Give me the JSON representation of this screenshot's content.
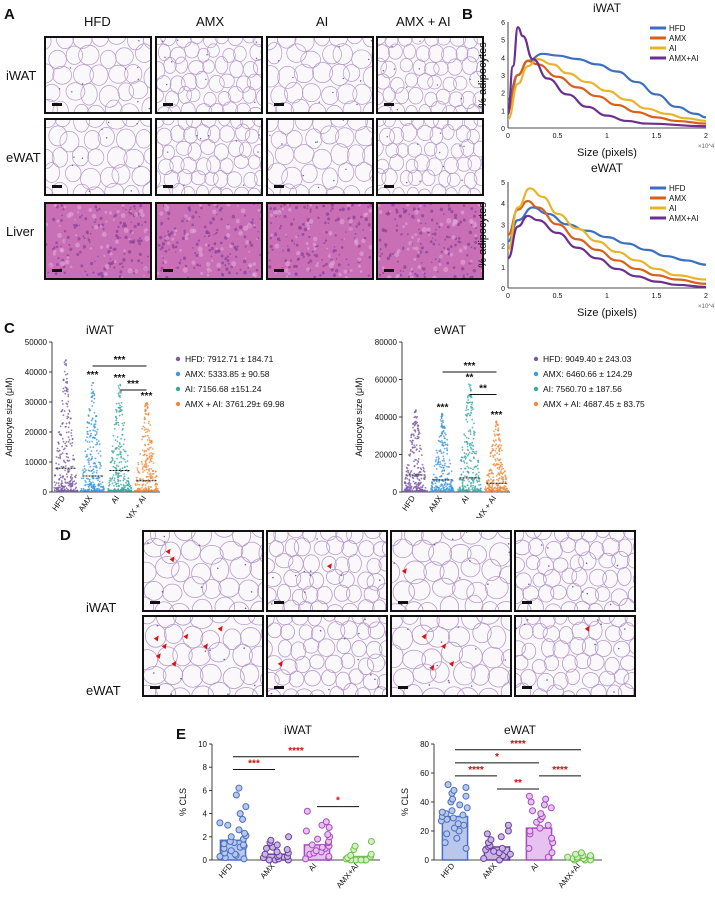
{
  "panels": {
    "a": "A",
    "b": "B",
    "c": "C",
    "d": "D",
    "e": "E"
  },
  "panel_a": {
    "columns": [
      "HFD",
      "AMX",
      "AI",
      "AMX + AI"
    ],
    "rows": [
      "iWAT",
      "eWAT",
      "Liver"
    ]
  },
  "panel_b": {
    "chart_data": [
      {
        "type": "line",
        "title": "iWAT",
        "xlabel": "Size (pixels)",
        "ylabel": "% adipocytes",
        "x_multiplier": "×10^4",
        "xlim": [
          0,
          2
        ],
        "ylim": [
          0,
          6
        ],
        "xticks": [
          "0",
          "0.5",
          "1",
          "1.5",
          "2"
        ],
        "yticks": [
          "0",
          "1",
          "2",
          "3",
          "4",
          "5",
          "6"
        ],
        "legend": "top-right",
        "series": [
          {
            "name": "HFD",
            "color": "#3b6fbf",
            "points": [
              [
                0,
                1.6
              ],
              [
                0.1,
                3.0
              ],
              [
                0.2,
                3.8
              ],
              [
                0.35,
                4.2
              ],
              [
                0.5,
                4.1
              ],
              [
                0.7,
                3.9
              ],
              [
                0.9,
                3.6
              ],
              [
                1.1,
                3.2
              ],
              [
                1.3,
                2.6
              ],
              [
                1.5,
                1.9
              ],
              [
                1.7,
                1.2
              ],
              [
                1.9,
                0.8
              ],
              [
                2,
                0.6
              ]
            ]
          },
          {
            "name": "AMX",
            "color": "#d95f1a",
            "points": [
              [
                0,
                1.0
              ],
              [
                0.1,
                3.0
              ],
              [
                0.2,
                3.8
              ],
              [
                0.3,
                3.6
              ],
              [
                0.5,
                2.9
              ],
              [
                0.7,
                2.3
              ],
              [
                0.9,
                1.8
              ],
              [
                1.1,
                1.3
              ],
              [
                1.3,
                0.9
              ],
              [
                1.5,
                0.6
              ],
              [
                1.7,
                0.4
              ],
              [
                2,
                0.25
              ]
            ]
          },
          {
            "name": "AI",
            "color": "#e8b52a",
            "points": [
              [
                0,
                0.5
              ],
              [
                0.1,
                2.5
              ],
              [
                0.2,
                3.5
              ],
              [
                0.3,
                3.9
              ],
              [
                0.45,
                3.6
              ],
              [
                0.6,
                3.1
              ],
              [
                0.8,
                2.6
              ],
              [
                1.0,
                2.1
              ],
              [
                1.2,
                1.6
              ],
              [
                1.4,
                1.1
              ],
              [
                1.6,
                0.8
              ],
              [
                1.8,
                0.55
              ],
              [
                2,
                0.4
              ]
            ]
          },
          {
            "name": "AMX+AI",
            "color": "#6b2f8f",
            "points": [
              [
                0,
                0.8
              ],
              [
                0.05,
                3.5
              ],
              [
                0.1,
                5.7
              ],
              [
                0.15,
                5.2
              ],
              [
                0.25,
                3.9
              ],
              [
                0.4,
                2.8
              ],
              [
                0.6,
                1.9
              ],
              [
                0.8,
                1.2
              ],
              [
                1.0,
                0.7
              ],
              [
                1.2,
                0.4
              ],
              [
                1.4,
                0.25
              ],
              [
                2,
                0.1
              ]
            ]
          }
        ]
      },
      {
        "type": "line",
        "title": "eWAT",
        "xlabel": "Size (pixels)",
        "ylabel": "% adipocytes",
        "x_multiplier": "×10^4",
        "xlim": [
          0,
          2
        ],
        "ylim": [
          0,
          5
        ],
        "xticks": [
          "0",
          "0.5",
          "1",
          "1.5",
          "2"
        ],
        "yticks": [
          "0",
          "1",
          "2",
          "3",
          "4",
          "5"
        ],
        "legend": "top-right",
        "series": [
          {
            "name": "HFD",
            "color": "#3b6fbf",
            "points": [
              [
                0,
                2.2
              ],
              [
                0.1,
                3.2
              ],
              [
                0.25,
                3.8
              ],
              [
                0.4,
                3.5
              ],
              [
                0.6,
                3.0
              ],
              [
                0.8,
                2.7
              ],
              [
                1.0,
                2.4
              ],
              [
                1.2,
                2.1
              ],
              [
                1.4,
                1.8
              ],
              [
                1.6,
                1.5
              ],
              [
                1.8,
                1.3
              ],
              [
                2,
                1.1
              ]
            ]
          },
          {
            "name": "AMX",
            "color": "#d95f1a",
            "points": [
              [
                0,
                2.5
              ],
              [
                0.1,
                3.7
              ],
              [
                0.2,
                4.1
              ],
              [
                0.3,
                3.8
              ],
              [
                0.5,
                3.0
              ],
              [
                0.7,
                2.3
              ],
              [
                0.9,
                1.8
              ],
              [
                1.1,
                1.3
              ],
              [
                1.3,
                0.9
              ],
              [
                1.5,
                0.6
              ],
              [
                1.7,
                0.4
              ],
              [
                2,
                0.2
              ]
            ]
          },
          {
            "name": "AI",
            "color": "#e8b52a",
            "points": [
              [
                0,
                1.8
              ],
              [
                0.1,
                3.8
              ],
              [
                0.22,
                4.7
              ],
              [
                0.35,
                4.3
              ],
              [
                0.5,
                3.5
              ],
              [
                0.7,
                2.8
              ],
              [
                0.9,
                2.2
              ],
              [
                1.1,
                1.7
              ],
              [
                1.3,
                1.3
              ],
              [
                1.5,
                0.9
              ],
              [
                1.7,
                0.6
              ],
              [
                2,
                0.4
              ]
            ]
          },
          {
            "name": "AMX+AI",
            "color": "#6b2f8f",
            "points": [
              [
                0,
                1.4
              ],
              [
                0.1,
                2.9
              ],
              [
                0.2,
                3.4
              ],
              [
                0.3,
                3.2
              ],
              [
                0.5,
                2.6
              ],
              [
                0.7,
                1.9
              ],
              [
                0.9,
                1.4
              ],
              [
                1.1,
                0.9
              ],
              [
                1.3,
                0.55
              ],
              [
                1.5,
                0.3
              ],
              [
                1.7,
                0.15
              ],
              [
                2,
                0.05
              ]
            ]
          }
        ]
      }
    ]
  },
  "panel_c": {
    "chart_data": [
      {
        "type": "scatter",
        "title": "iWAT",
        "ylabel": "Adipocyte size (μM)",
        "categories": [
          "HFD",
          "AMX",
          "AI",
          "AMX + AI"
        ],
        "ylim": [
          0,
          50000
        ],
        "yticks": [
          "0",
          "10000",
          "20000",
          "30000",
          "40000",
          "50000"
        ],
        "means": [
          7912.71,
          5333.85,
          7156.68,
          3761.29
        ],
        "colors": [
          "#7b5aa6",
          "#3f97e0",
          "#3aa7a0",
          "#f08a3c"
        ],
        "tops": [
          44000,
          37000,
          36000,
          30000
        ],
        "stars": [
          "",
          "***",
          "***",
          "***"
        ],
        "bars": [
          {
            "from": 1,
            "to": 3,
            "y": 42000,
            "label": "***"
          },
          {
            "from": 2,
            "to": 3,
            "y": 34000,
            "label": "***"
          }
        ],
        "legend": [
          "HFD: 7912.71 ± 184.71",
          "AMX: 5333.85 ± 90.58",
          "AI: 7156.68 ±151.24",
          "AMX + AI: 3761.29± 69.98"
        ]
      },
      {
        "type": "scatter",
        "title": "eWAT",
        "ylabel": "Adipocyte size (μM)",
        "categories": [
          "HFD",
          "AMX",
          "AI",
          "AMX + AI"
        ],
        "ylim": [
          0,
          80000
        ],
        "yticks": [
          "0",
          "20000",
          "40000",
          "60000",
          "80000"
        ],
        "means": [
          9049.4,
          6460.66,
          7560.7,
          4687.45
        ],
        "colors": [
          "#7b5aa6",
          "#3f97e0",
          "#3aa7a0",
          "#f08a3c"
        ],
        "tops": [
          44000,
          42000,
          58000,
          38000
        ],
        "stars": [
          "",
          "***",
          "**",
          "***"
        ],
        "bars": [
          {
            "from": 1,
            "to": 3,
            "y": 64000,
            "label": "***"
          },
          {
            "from": 2,
            "to": 3,
            "y": 52000,
            "label": "**"
          }
        ],
        "legend": [
          "HFD: 9049.40 ± 243.03",
          "AMX: 6460.66 ± 124.29",
          "AI: 7560.70 ± 187.56",
          "AMX + AI: 4687.45 ± 83.75"
        ]
      }
    ]
  },
  "panel_d": {
    "rows": [
      "iWAT",
      "eWAT"
    ]
  },
  "panel_e": {
    "chart_data": [
      {
        "type": "bar",
        "title": "iWAT",
        "ylabel": "% CLS",
        "categories": [
          "HFD",
          "AMX",
          "AI",
          "AMX+AI"
        ],
        "values": [
          1.7,
          0.5,
          1.3,
          0.3
        ],
        "ylim": [
          0,
          10
        ],
        "yticks": [
          "0",
          "2",
          "4",
          "6",
          "8",
          "10"
        ],
        "colors": [
          "#4a6fc0",
          "#6a3ea0",
          "#a64cc0",
          "#6fbf4a"
        ],
        "fills": [
          "#b9c7ec",
          "#c9b6e3",
          "#e7c1ef",
          "#d3efc3"
        ],
        "points": [
          [
            0.1,
            0.2,
            0.3,
            0.4,
            0.5,
            0.6,
            0.8,
            1.0,
            1.1,
            1.2,
            1.3,
            1.4,
            1.5,
            1.6,
            1.8,
            2.0,
            2.1,
            2.3,
            2.6,
            3.0,
            3.2,
            3.5,
            4.0,
            4.6,
            5.6,
            6.2
          ],
          [
            0,
            0,
            0,
            0.1,
            0.2,
            0.3,
            0.3,
            0.4,
            0.5,
            0.6,
            0.7,
            0.9,
            1.0,
            1.1,
            1.3,
            1.5,
            1.7,
            2.0
          ],
          [
            0.1,
            0.2,
            0.3,
            0.5,
            0.6,
            0.7,
            0.8,
            1.0,
            1.1,
            1.2,
            1.3,
            1.5,
            1.6,
            1.8,
            2.0,
            2.2,
            2.5,
            2.8,
            3.0,
            3.3,
            4.2
          ],
          [
            0,
            0,
            0,
            0,
            0,
            0.1,
            0.1,
            0.2,
            0.3,
            0.4,
            0.5,
            0.9,
            1.2,
            1.6
          ]
        ],
        "sig": [
          {
            "from": 0,
            "to": 1,
            "y": 7.8,
            "label": "***"
          },
          {
            "from": 0,
            "to": 3,
            "y": 8.9,
            "label": "****"
          },
          {
            "from": 2,
            "to": 3,
            "y": 4.6,
            "label": "*"
          }
        ]
      },
      {
        "type": "bar",
        "title": "eWAT",
        "ylabel": "% CLS",
        "categories": [
          "HFD",
          "AMX",
          "AI",
          "AMX+AI"
        ],
        "values": [
          30,
          9,
          22,
          2
        ],
        "ylim": [
          0,
          80
        ],
        "yticks": [
          "0",
          "20",
          "40",
          "60",
          "80"
        ],
        "colors": [
          "#4a6fc0",
          "#6a3ea0",
          "#a64cc0",
          "#6fbf4a"
        ],
        "fills": [
          "#b9c7ec",
          "#c9b6e3",
          "#e7c1ef",
          "#d3efc3"
        ],
        "points": [
          [
            8,
            12,
            15,
            18,
            20,
            22,
            24,
            25,
            27,
            28,
            29,
            30,
            31,
            32,
            33,
            34,
            36,
            38,
            40,
            42,
            44,
            46,
            48,
            50,
            52
          ],
          [
            0,
            1,
            2,
            3,
            4,
            5,
            6,
            7,
            8,
            9,
            10,
            12,
            14,
            16,
            18,
            20,
            24
          ],
          [
            2,
            5,
            8,
            12,
            15,
            18,
            20,
            22,
            24,
            26,
            28,
            30,
            32,
            34,
            36,
            38,
            40,
            42,
            44
          ],
          [
            0,
            0,
            0,
            1,
            1,
            1,
            2,
            2,
            3,
            3,
            4,
            5
          ]
        ],
        "sig": [
          {
            "from": 0,
            "to": 1,
            "y": 58,
            "label": "****"
          },
          {
            "from": 0,
            "to": 2,
            "y": 67,
            "label": "*"
          },
          {
            "from": 0,
            "to": 3,
            "y": 76,
            "label": "****"
          },
          {
            "from": 1,
            "to": 2,
            "y": 49,
            "label": "**"
          },
          {
            "from": 2,
            "to": 3,
            "y": 58,
            "label": "****"
          }
        ]
      }
    ]
  }
}
